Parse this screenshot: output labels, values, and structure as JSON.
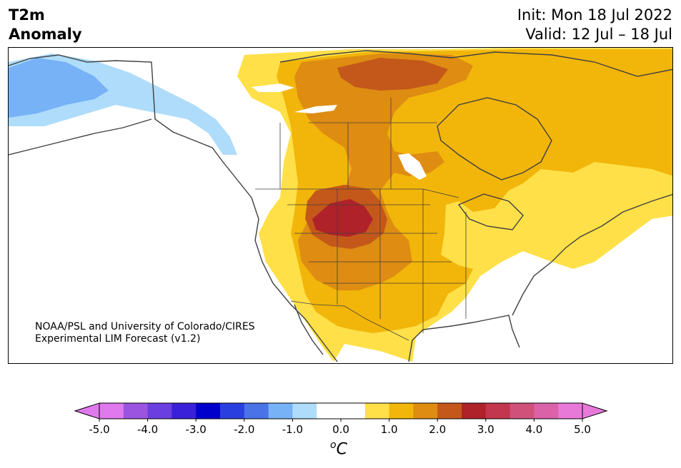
{
  "header": {
    "title_line1": "T2m",
    "title_line2": "Anomaly",
    "init": "Init: Mon 18 Jul 2022",
    "valid": "Valid: 12 Jul – 18 Jul"
  },
  "credit": {
    "line1": "NOAA/PSL and University of Colorado/CIRES",
    "line2": "Experimental LIM Forecast (v1.2)"
  },
  "colorbar": {
    "unit": "oC",
    "ticks": [
      "-5.0",
      "-4.0",
      "-3.0",
      "-2.0",
      "-1.0",
      "0.0",
      "1.0",
      "2.0",
      "3.0",
      "4.0",
      "5.0"
    ],
    "colors": [
      "#e079ee",
      "#9b54e0",
      "#6b3ee0",
      "#3a20d8",
      "#0000cd",
      "#2a3fe0",
      "#4a73e8",
      "#77b2f6",
      "#aedcfa",
      "#ffffff",
      "#ffffff",
      "#ffe048",
      "#f2b50a",
      "#de8c12",
      "#c4581a",
      "#b0222a",
      "#c2364e",
      "#d0527a",
      "#db62a8",
      "#e879d8"
    ],
    "arrow_low": "#e079ee",
    "arrow_high": "#e879d8"
  },
  "legend_colors": {
    "c_m2": "#77b2f6",
    "c_m1": "#aedcfa",
    "c_p05": "#ffe048",
    "c_p1": "#f2b50a",
    "c_p2": "#de8c12",
    "c_p25": "#c4581a",
    "c_p3": "#b0222a",
    "coast": "#404040"
  }
}
